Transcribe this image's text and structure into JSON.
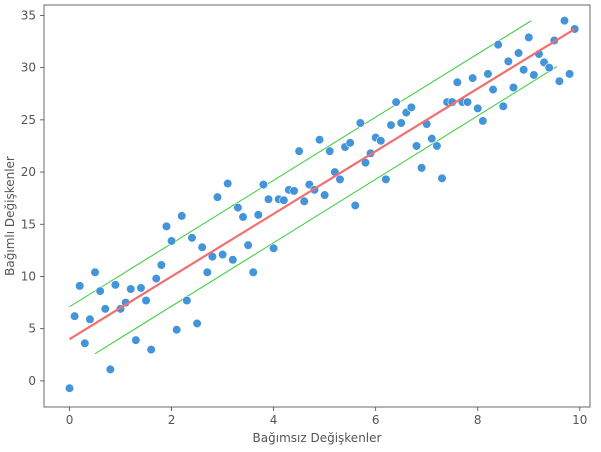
{
  "chart_data": {
    "type": "scatter",
    "xlabel": "Bağımsız Değişkenler",
    "ylabel": "Bağımlı Değişkenler",
    "xlim": [
      -0.5,
      10.2
    ],
    "ylim": [
      -2.5,
      36
    ],
    "xticks": [
      0,
      2,
      4,
      6,
      8,
      10
    ],
    "yticks": [
      0,
      5,
      10,
      15,
      20,
      25,
      30,
      35
    ],
    "grid": false,
    "colors": {
      "points": "#3a8fd9",
      "fit_line": "#f07070",
      "band_lines": "#33cc33",
      "axis": "#444444"
    },
    "points": [
      [
        0.0,
        -0.7
      ],
      [
        0.1,
        6.2
      ],
      [
        0.2,
        9.1
      ],
      [
        0.3,
        3.6
      ],
      [
        0.4,
        5.9
      ],
      [
        0.5,
        10.4
      ],
      [
        0.6,
        8.6
      ],
      [
        0.7,
        6.9
      ],
      [
        0.8,
        1.1
      ],
      [
        0.9,
        9.2
      ],
      [
        1.0,
        6.9
      ],
      [
        1.1,
        7.5
      ],
      [
        1.2,
        8.8
      ],
      [
        1.3,
        3.9
      ],
      [
        1.4,
        8.9
      ],
      [
        1.5,
        7.7
      ],
      [
        1.6,
        3.0
      ],
      [
        1.7,
        9.8
      ],
      [
        1.8,
        11.1
      ],
      [
        1.9,
        14.8
      ],
      [
        2.0,
        13.4
      ],
      [
        2.1,
        4.9
      ],
      [
        2.2,
        15.8
      ],
      [
        2.3,
        7.7
      ],
      [
        2.4,
        13.7
      ],
      [
        2.5,
        5.5
      ],
      [
        2.6,
        12.8
      ],
      [
        2.7,
        10.4
      ],
      [
        2.8,
        11.9
      ],
      [
        2.9,
        17.6
      ],
      [
        3.0,
        12.1
      ],
      [
        3.1,
        18.9
      ],
      [
        3.2,
        11.6
      ],
      [
        3.3,
        16.6
      ],
      [
        3.4,
        15.7
      ],
      [
        3.5,
        13.0
      ],
      [
        3.6,
        10.4
      ],
      [
        3.7,
        15.9
      ],
      [
        3.8,
        18.8
      ],
      [
        3.9,
        17.4
      ],
      [
        4.0,
        12.7
      ],
      [
        4.1,
        17.4
      ],
      [
        4.2,
        17.3
      ],
      [
        4.3,
        18.3
      ],
      [
        4.4,
        18.2
      ],
      [
        4.5,
        22.0
      ],
      [
        4.6,
        17.2
      ],
      [
        4.7,
        18.8
      ],
      [
        4.8,
        18.3
      ],
      [
        4.9,
        23.1
      ],
      [
        5.0,
        17.8
      ],
      [
        5.1,
        22.0
      ],
      [
        5.2,
        20.0
      ],
      [
        5.3,
        19.3
      ],
      [
        5.4,
        22.4
      ],
      [
        5.5,
        22.8
      ],
      [
        5.6,
        16.8
      ],
      [
        5.7,
        24.7
      ],
      [
        5.8,
        20.9
      ],
      [
        5.9,
        21.8
      ],
      [
        6.0,
        23.3
      ],
      [
        6.1,
        23.0
      ],
      [
        6.2,
        19.3
      ],
      [
        6.3,
        24.5
      ],
      [
        6.4,
        26.7
      ],
      [
        6.5,
        24.7
      ],
      [
        6.6,
        25.7
      ],
      [
        6.7,
        26.2
      ],
      [
        6.8,
        22.5
      ],
      [
        6.9,
        20.4
      ],
      [
        7.0,
        24.6
      ],
      [
        7.1,
        23.2
      ],
      [
        7.2,
        22.5
      ],
      [
        7.3,
        19.4
      ],
      [
        7.4,
        26.7
      ],
      [
        7.5,
        26.7
      ],
      [
        7.6,
        28.6
      ],
      [
        7.7,
        26.7
      ],
      [
        7.8,
        26.7
      ],
      [
        7.9,
        29.0
      ],
      [
        8.0,
        26.1
      ],
      [
        8.1,
        24.9
      ],
      [
        8.2,
        29.4
      ],
      [
        8.3,
        27.9
      ],
      [
        8.4,
        32.2
      ],
      [
        8.5,
        26.3
      ],
      [
        8.6,
        30.6
      ],
      [
        8.7,
        28.1
      ],
      [
        8.8,
        31.4
      ],
      [
        8.9,
        29.8
      ],
      [
        9.0,
        32.9
      ],
      [
        9.1,
        29.3
      ],
      [
        9.2,
        31.3
      ],
      [
        9.3,
        30.5
      ],
      [
        9.4,
        30.0
      ],
      [
        9.5,
        32.6
      ],
      [
        9.6,
        28.7
      ],
      [
        9.7,
        34.5
      ],
      [
        9.8,
        29.4
      ],
      [
        9.9,
        33.7
      ]
    ],
    "fit_line": {
      "x": [
        0,
        9.9
      ],
      "y": [
        4.0,
        33.7
      ]
    },
    "upper_band": {
      "x": [
        0,
        9.05
      ],
      "y": [
        7.1,
        34.5
      ]
    },
    "lower_band": {
      "x": [
        0.5,
        9.55
      ],
      "y": [
        2.6,
        30.1
      ]
    }
  }
}
